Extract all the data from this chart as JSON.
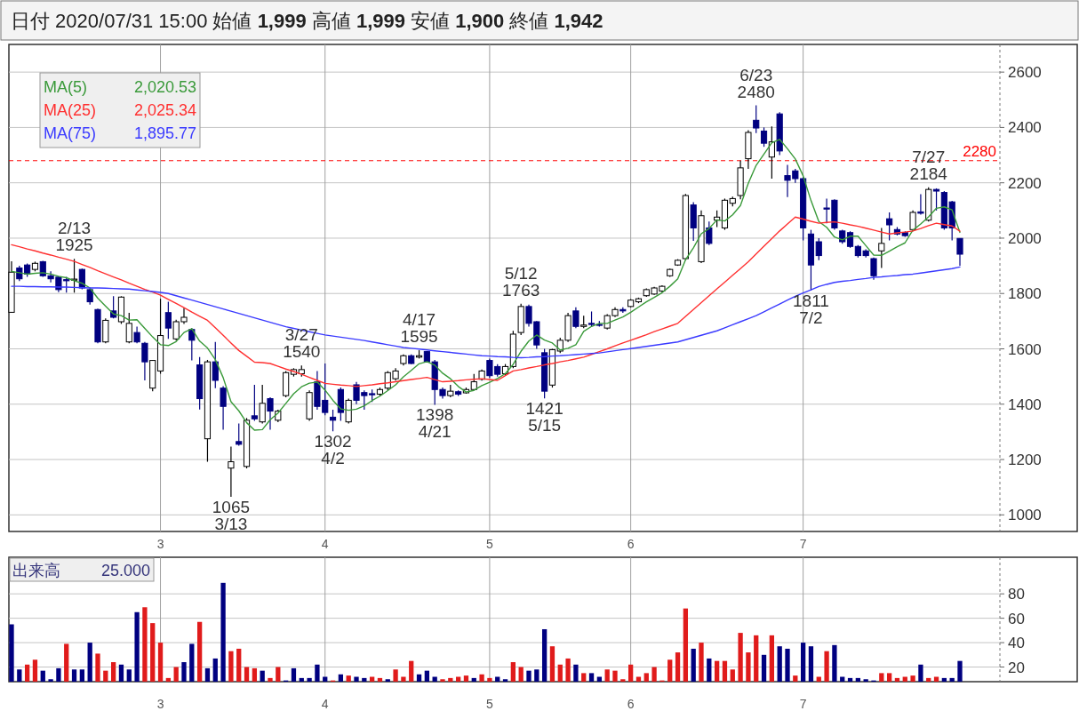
{
  "chart_data": [
    {
      "type": "candlestick",
      "title": "日付 2020/07/31 15:00 始値 **1,999** 高値 **1,999** 安値 **1,900** 終値 **1,942**",
      "categories": [
        null,
        null,
        null,
        null,
        null,
        null,
        null,
        null,
        null,
        null,
        null,
        null,
        null,
        null,
        null,
        null,
        null,
        null,
        null,
        "3",
        null,
        null,
        null,
        null,
        null,
        null,
        null,
        null,
        null,
        null,
        null,
        null,
        null,
        null,
        null,
        null,
        null,
        null,
        null,
        null,
        "4",
        null,
        null,
        null,
        null,
        null,
        null,
        null,
        null,
        null,
        null,
        null,
        null,
        null,
        null,
        null,
        null,
        null,
        null,
        null,
        null,
        "5",
        null,
        null,
        null,
        null,
        null,
        null,
        null,
        null,
        null,
        null,
        null,
        null,
        null,
        null,
        null,
        null,
        null,
        "6",
        null,
        null,
        null,
        null,
        null,
        null,
        null,
        null,
        null,
        null,
        null,
        null,
        null,
        null,
        null,
        null,
        null,
        null,
        null,
        null,
        null,
        "7",
        null,
        null,
        null,
        null,
        null,
        null,
        null,
        null,
        null,
        null,
        null,
        null,
        null,
        null,
        null,
        null,
        null,
        null,
        null,
        null
      ],
      "ohlc": [
        [
          1732,
          1916,
          1732,
          1877
        ],
        [
          1892,
          1900,
          1845,
          1853
        ],
        [
          1903,
          1908,
          1860,
          1870
        ],
        [
          1887,
          1915,
          1880,
          1909
        ],
        [
          1915,
          1918,
          1860,
          1864
        ],
        [
          1864,
          1880,
          1840,
          1853
        ],
        [
          1859,
          1862,
          1805,
          1814
        ],
        [
          1850,
          1860,
          1803,
          1846
        ],
        [
          1848,
          1925,
          1803,
          1852
        ],
        [
          1887,
          1890,
          1815,
          1820
        ],
        [
          1814,
          1818,
          1760,
          1770
        ],
        [
          1742,
          1745,
          1620,
          1625
        ],
        [
          1625,
          1710,
          1620,
          1703
        ],
        [
          1737,
          1790,
          1710,
          1714
        ],
        [
          1698,
          1790,
          1690,
          1787
        ],
        [
          1625,
          1730,
          1620,
          1692
        ],
        [
          1659,
          1680,
          1620,
          1625
        ],
        [
          1620,
          1625,
          1486,
          1553
        ],
        [
          1458,
          1560,
          1447,
          1558
        ],
        [
          1520,
          1781,
          1510,
          1648
        ],
        [
          1731,
          1770,
          1636,
          1675
        ],
        [
          1636,
          1705,
          1630,
          1698
        ],
        [
          1698,
          1748,
          1690,
          1714
        ],
        [
          1670,
          1675,
          1558,
          1631
        ],
        [
          1542,
          1570,
          1381,
          1420
        ],
        [
          1275,
          1560,
          1192,
          1553
        ],
        [
          1553,
          1625,
          1458,
          1486
        ],
        [
          1458,
          1465,
          1308,
          1392
        ],
        [
          1169,
          1247,
          1065,
          1192
        ],
        [
          1265,
          1330,
          1250,
          1255
        ],
        [
          1175,
          1350,
          1168,
          1342
        ],
        [
          1358,
          1470,
          1340,
          1347
        ],
        [
          1336,
          1470,
          1330,
          1403
        ],
        [
          1420,
          1425,
          1308,
          1375
        ],
        [
          1342,
          1380,
          1335,
          1375
        ],
        [
          1431,
          1520,
          1425,
          1514
        ],
        [
          1508,
          1530,
          1500,
          1525
        ],
        [
          1510,
          1540,
          1500,
          1525
        ],
        [
          1347,
          1450,
          1340,
          1442
        ],
        [
          1481,
          1520,
          1380,
          1392
        ],
        [
          1414,
          1547,
          1360,
          1370
        ],
        [
          1353,
          1380,
          1302,
          1342
        ],
        [
          1453,
          1460,
          1340,
          1370
        ],
        [
          1336,
          1420,
          1330,
          1414
        ],
        [
          1470,
          1480,
          1400,
          1414
        ],
        [
          1442,
          1450,
          1380,
          1431
        ],
        [
          1438,
          1453,
          1408,
          1434
        ],
        [
          1436,
          1460,
          1430,
          1453
        ],
        [
          1458,
          1520,
          1450,
          1514
        ],
        [
          1492,
          1530,
          1485,
          1520
        ],
        [
          1547,
          1580,
          1540,
          1575
        ],
        [
          1575,
          1580,
          1545,
          1547
        ],
        [
          1570,
          1595,
          1565,
          1575
        ],
        [
          1590,
          1592,
          1550,
          1553
        ],
        [
          1553,
          1560,
          1398,
          1453
        ],
        [
          1453,
          1460,
          1420,
          1431
        ],
        [
          1431,
          1470,
          1425,
          1447
        ],
        [
          1445,
          1450,
          1430,
          1436
        ],
        [
          1441,
          1460,
          1438,
          1453
        ],
        [
          1453,
          1509,
          1450,
          1481
        ],
        [
          1490,
          1525,
          1485,
          1520
        ],
        [
          1558,
          1565,
          1495,
          1503
        ],
        [
          1536,
          1545,
          1500,
          1508
        ],
        [
          1510,
          1545,
          1505,
          1536
        ],
        [
          1536,
          1665,
          1530,
          1653
        ],
        [
          1659,
          1763,
          1650,
          1753
        ],
        [
          1753,
          1760,
          1680,
          1692
        ],
        [
          1698,
          1700,
          1600,
          1614
        ],
        [
          1586,
          1600,
          1421,
          1447
        ],
        [
          1469,
          1600,
          1460,
          1597
        ],
        [
          1592,
          1640,
          1585,
          1631
        ],
        [
          1631,
          1730,
          1625,
          1720
        ],
        [
          1737,
          1750,
          1675,
          1681
        ],
        [
          1681,
          1720,
          1675,
          1686
        ],
        [
          1692,
          1735,
          1680,
          1688
        ],
        [
          1688,
          1700,
          1680,
          1686
        ],
        [
          1675,
          1725,
          1670,
          1720
        ],
        [
          1720,
          1750,
          1715,
          1742
        ],
        [
          1742,
          1750,
          1730,
          1737
        ],
        [
          1753,
          1780,
          1750,
          1776
        ],
        [
          1770,
          1785,
          1765,
          1781
        ],
        [
          1792,
          1818,
          1788,
          1814
        ],
        [
          1798,
          1824,
          1795,
          1820
        ],
        [
          1809,
          1830,
          1805,
          1826
        ],
        [
          1864,
          1890,
          1860,
          1887
        ],
        [
          1903,
          1924,
          1900,
          1920
        ],
        [
          1926,
          2160,
          1920,
          2154
        ],
        [
          2120,
          2130,
          1990,
          2037
        ],
        [
          1915,
          2100,
          1910,
          2081
        ],
        [
          2037,
          2060,
          1975,
          1981
        ],
        [
          2065,
          2100,
          2040,
          2076
        ],
        [
          2037,
          2143,
          2030,
          2137
        ],
        [
          2126,
          2150,
          2115,
          2143
        ],
        [
          2154,
          2280,
          2140,
          2254
        ],
        [
          2287,
          2390,
          2250,
          2382
        ],
        [
          2426,
          2480,
          2380,
          2398
        ],
        [
          2387,
          2400,
          2330,
          2343
        ],
        [
          2293,
          2404,
          2215,
          2348
        ],
        [
          2449,
          2455,
          2300,
          2315
        ],
        [
          2226,
          2265,
          2148,
          2209
        ],
        [
          2243,
          2250,
          2200,
          2215
        ],
        [
          2215,
          2220,
          1992,
          2037
        ],
        [
          2015,
          2030,
          1811,
          1903
        ],
        [
          1987,
          2000,
          1920,
          1937
        ],
        [
          2109,
          2143,
          2054,
          2105
        ],
        [
          2137,
          2140,
          2030,
          2037
        ],
        [
          2026,
          2030,
          1980,
          1987
        ],
        [
          2020,
          2025,
          1965,
          1970
        ],
        [
          1970,
          1975,
          1930,
          1937
        ],
        [
          1954,
          1960,
          1930,
          1937
        ],
        [
          1926,
          1930,
          1850,
          1864
        ],
        [
          1954,
          2037,
          1892,
          1981
        ],
        [
          2070,
          2093,
          1992,
          2048
        ],
        [
          2031,
          2040,
          2010,
          2015
        ],
        [
          2020,
          2025,
          2005,
          2009
        ],
        [
          2031,
          2100,
          2025,
          2093
        ],
        [
          2095,
          2159,
          2085,
          2090
        ],
        [
          2065,
          2184,
          2060,
          2176
        ],
        [
          2176,
          2180,
          2100,
          2170
        ],
        [
          2165,
          2170,
          2030,
          2037
        ],
        [
          2131,
          2135,
          1992,
          2037
        ],
        [
          1999,
          1999,
          1900,
          1942
        ]
      ],
      "series": [
        {
          "name": "MA(5)",
          "type": "line",
          "color": "#3a9a3a",
          "values": [
            1880,
            1875,
            1870,
            1873,
            1875,
            1870,
            1862,
            1857,
            1846,
            1837,
            1820,
            1783,
            1754,
            1726,
            1720,
            1704,
            1705,
            1674,
            1643,
            1615,
            1612,
            1626,
            1659,
            1673,
            1628,
            1603,
            1561,
            1496,
            1409,
            1376,
            1333,
            1306,
            1308,
            1344,
            1368,
            1403,
            1438,
            1463,
            1476,
            1480,
            1451,
            1414,
            1383,
            1378,
            1382,
            1394,
            1413,
            1429,
            1449,
            1470,
            1499,
            1522,
            1546,
            1554,
            1541,
            1512,
            1492,
            1464,
            1444,
            1450,
            1467,
            1479,
            1493,
            1510,
            1544,
            1591,
            1628,
            1650,
            1632,
            1621,
            1596,
            1602,
            1615,
            1663,
            1681,
            1692,
            1692,
            1704,
            1715,
            1732,
            1751,
            1770,
            1786,
            1803,
            1826,
            1853,
            1922,
            1965,
            2016,
            2035,
            2066,
            2062,
            2084,
            2118,
            2198,
            2263,
            2304,
            2345,
            2357,
            2323,
            2286,
            2225,
            2136,
            2060,
            2039,
            2004,
            1994,
            2007,
            2007,
            1973,
            1939,
            1938,
            1953,
            1969,
            1983,
            2029,
            2051,
            2077,
            2108,
            2113,
            2102,
            2021
          ]
        },
        {
          "name": "MA(25)",
          "type": "line",
          "color": "#ff3030",
          "values": [
            1976,
            1969,
            1961,
            1954,
            1946,
            1939,
            1931,
            1924,
            1916,
            1905,
            1894,
            1882,
            1871,
            1860,
            1849,
            1837,
            1826,
            1815,
            1805,
            1794,
            1779,
            1764,
            1749,
            1733,
            1718,
            1703,
            1676,
            1649,
            1621,
            1594,
            1573,
            1552,
            1550,
            1547,
            1537,
            1527,
            1518,
            1508,
            1497,
            1486,
            1475,
            1472,
            1469,
            1467,
            1464,
            1467,
            1470,
            1474,
            1477,
            1481,
            1485,
            1489,
            1493,
            1497,
            1489,
            1481,
            1483,
            1485,
            1488,
            1490,
            1492,
            1489,
            1486,
            1503,
            1520,
            1525,
            1531,
            1536,
            1542,
            1547,
            1553,
            1558,
            1564,
            1570,
            1580,
            1590,
            1600,
            1611,
            1621,
            1631,
            1641,
            1651,
            1662,
            1672,
            1682,
            1692,
            1717,
            1742,
            1767,
            1792,
            1817,
            1841,
            1866,
            1890,
            1915,
            1943,
            1971,
            1998,
            2026,
            2051,
            2076,
            2069,
            2061,
            2054,
            2057,
            2059,
            2054,
            2048,
            2043,
            2036,
            2029,
            2022,
            2015,
            2019,
            2022,
            2026,
            2035,
            2045,
            2054,
            2049,
            2044,
            2025
          ]
        },
        {
          "name": "MA(75)",
          "type": "line",
          "color": "#3a3aff",
          "values": [
            1826,
            1826,
            1825,
            1825,
            1824,
            1824,
            1823,
            1823,
            1822,
            1821,
            1820,
            1820,
            1819,
            1818,
            1817,
            1816,
            1813,
            1810,
            1807,
            1804,
            1800,
            1792,
            1784,
            1776,
            1768,
            1760,
            1752,
            1744,
            1736,
            1728,
            1720,
            1712,
            1704,
            1696,
            1688,
            1680,
            1674,
            1668,
            1662,
            1656,
            1650,
            1646,
            1642,
            1638,
            1634,
            1630,
            1625,
            1620,
            1615,
            1610,
            1605,
            1602,
            1599,
            1596,
            1593,
            1590,
            1587,
            1584,
            1581,
            1578,
            1575,
            1574,
            1572,
            1571,
            1569,
            1568,
            1569,
            1571,
            1572,
            1574,
            1575,
            1577,
            1579,
            1581,
            1583,
            1585,
            1589,
            1593,
            1597,
            1601,
            1605,
            1609,
            1613,
            1617,
            1621,
            1625,
            1633,
            1641,
            1649,
            1657,
            1665,
            1676,
            1687,
            1698,
            1709,
            1720,
            1734,
            1748,
            1762,
            1776,
            1790,
            1802,
            1813,
            1825,
            1833,
            1840,
            1844,
            1847,
            1851,
            1854,
            1858,
            1860,
            1863,
            1865,
            1868,
            1870,
            1874,
            1878,
            1882,
            1886,
            1890,
            1896
          ]
        }
      ],
      "annotations": [
        "2,020.53",
        "2,025.34",
        "1,895.77",
        {
          "text": "2/13 1925",
          "y": 1925
        },
        {
          "text": "1065 3/13",
          "y": 1065
        },
        {
          "text": "3/27 1540",
          "y": 1540
        },
        {
          "text": "1302 4/2",
          "y": 1302
        },
        {
          "text": "4/17 1595",
          "y": 1595
        },
        {
          "text": "1398 4/21",
          "y": 1398
        },
        {
          "text": "5/12 1763",
          "y": 1763
        },
        {
          "text": "1421 5/15",
          "y": 1421
        },
        {
          "text": "6/23 2480",
          "y": 2480
        },
        {
          "text": "1811 7/2",
          "y": 1811
        },
        {
          "text": "7/27 2184",
          "y": 2184
        }
      ],
      "ref_lines": [
        {
          "axis": "y",
          "value": 2280,
          "label": "2280",
          "color": "#ff0000",
          "line_style": "dashed"
        }
      ],
      "ylim": [
        940,
        2700
      ],
      "yticks": [
        1000,
        1200,
        1400,
        1600,
        1800,
        2000,
        2200,
        2400,
        2600
      ],
      "grid": true,
      "legend": "top left"
    },
    {
      "type": "bar",
      "title": "出来高",
      "annotations": [
        "25.000"
      ],
      "categories": [
        null,
        null,
        null,
        null,
        null,
        null,
        null,
        null,
        null,
        null,
        null,
        null,
        null,
        null,
        null,
        null,
        null,
        null,
        null,
        "3",
        null,
        null,
        null,
        null,
        null,
        null,
        null,
        null,
        null,
        null,
        null,
        null,
        null,
        null,
        null,
        null,
        null,
        null,
        null,
        null,
        "4",
        null,
        null,
        null,
        null,
        null,
        null,
        null,
        null,
        null,
        null,
        null,
        null,
        null,
        null,
        null,
        null,
        null,
        null,
        null,
        null,
        "5",
        null,
        null,
        null,
        null,
        null,
        null,
        null,
        null,
        null,
        null,
        null,
        null,
        null,
        null,
        null,
        null,
        null,
        "6",
        null,
        null,
        null,
        null,
        null,
        null,
        null,
        null,
        null,
        null,
        null,
        null,
        null,
        null,
        null,
        null,
        null,
        null,
        null,
        null,
        null,
        "7",
        null,
        null,
        null,
        null,
        null,
        null,
        null,
        null,
        null,
        null,
        null,
        null,
        null,
        null,
        null,
        null,
        null,
        null,
        null,
        null
      ],
      "values": [
        55,
        18,
        22,
        26,
        17,
        10,
        19,
        39,
        18,
        18,
        40,
        31,
        17,
        24,
        22,
        18,
        65,
        69,
        56,
        40,
        11,
        20,
        24,
        39,
        57,
        19,
        27,
        89,
        33,
        35,
        20,
        19,
        17,
        11,
        20,
        9,
        19,
        11,
        11,
        22,
        12,
        9,
        14,
        13,
        12,
        11,
        12,
        11,
        10,
        18,
        12,
        25,
        14,
        17,
        12,
        10,
        11,
        12,
        13,
        11,
        14,
        11,
        12,
        10,
        24,
        20,
        17,
        18,
        51,
        37,
        22,
        27,
        22,
        15,
        15,
        12,
        18,
        17,
        10,
        22,
        12,
        15,
        20,
        9,
        26,
        32,
        68,
        35,
        40,
        27,
        25,
        25,
        18,
        48,
        32,
        46,
        30,
        46,
        37,
        35,
        13,
        40,
        37,
        12,
        33,
        38,
        12,
        11,
        11,
        10,
        9,
        15,
        15,
        11,
        12,
        13,
        22,
        11,
        12,
        11,
        11,
        25
      ],
      "colors": [
        "#000080",
        "#000080",
        "#e01b1b",
        "#e01b1b",
        "#000080",
        "#000080",
        "#000080",
        "#e01b1b",
        "#000080",
        "#000080",
        "#000080",
        "#e01b1b",
        "#e01b1b",
        "#e01b1b",
        "#000080",
        "#000080",
        "#000080",
        "#e01b1b",
        "#e01b1b",
        "#e01b1b",
        "#e01b1b",
        "#e01b1b",
        "#000080",
        "#000080",
        "#e01b1b",
        "#000080",
        "#000080",
        "#000080",
        "#e01b1b",
        "#e01b1b",
        "#e01b1b",
        "#e01b1b",
        "#000080",
        "#e01b1b",
        "#e01b1b",
        "#000080",
        "#000080",
        "#000080",
        "#000080",
        "#000080",
        "#000080",
        "#e01b1b",
        "#000080",
        "#e01b1b",
        "#000080",
        "#000080",
        "#e01b1b",
        "#e01b1b",
        "#000080",
        "#e01b1b",
        "#e01b1b",
        "#e01b1b",
        "#000080",
        "#000080",
        "#000080",
        "#e01b1b",
        "#e01b1b",
        "#e01b1b",
        "#e01b1b",
        "#000080",
        "#e01b1b",
        "#e01b1b",
        "#000080",
        "#000080",
        "#e01b1b",
        "#e01b1b",
        "#000080",
        "#000080",
        "#000080",
        "#e01b1b",
        "#e01b1b",
        "#e01b1b",
        "#000080",
        "#e01b1b",
        "#000080",
        "#000080",
        "#e01b1b",
        "#e01b1b",
        "#e01b1b",
        "#e01b1b",
        "#e01b1b",
        "#e01b1b",
        "#e01b1b",
        "#e01b1b",
        "#e01b1b",
        "#e01b1b",
        "#e01b1b",
        "#000080",
        "#e01b1b",
        "#000080",
        "#e01b1b",
        "#e01b1b",
        "#e01b1b",
        "#e01b1b",
        "#e01b1b",
        "#e01b1b",
        "#000080",
        "#e01b1b",
        "#000080",
        "#000080",
        "#e01b1b",
        "#000080",
        "#000080",
        "#e01b1b",
        "#e01b1b",
        "#000080",
        "#000080",
        "#000080",
        "#000080",
        "#000080",
        "#000080",
        "#e01b1b",
        "#e01b1b",
        "#e01b1b",
        "#e01b1b",
        "#e01b1b",
        "#000080",
        "#e01b1b",
        "#e01b1b",
        "#000080",
        "#000080",
        "#000080"
      ],
      "ylim": [
        8,
        110
      ],
      "yticks": [
        20,
        40,
        60,
        80
      ],
      "grid": true
    }
  ]
}
